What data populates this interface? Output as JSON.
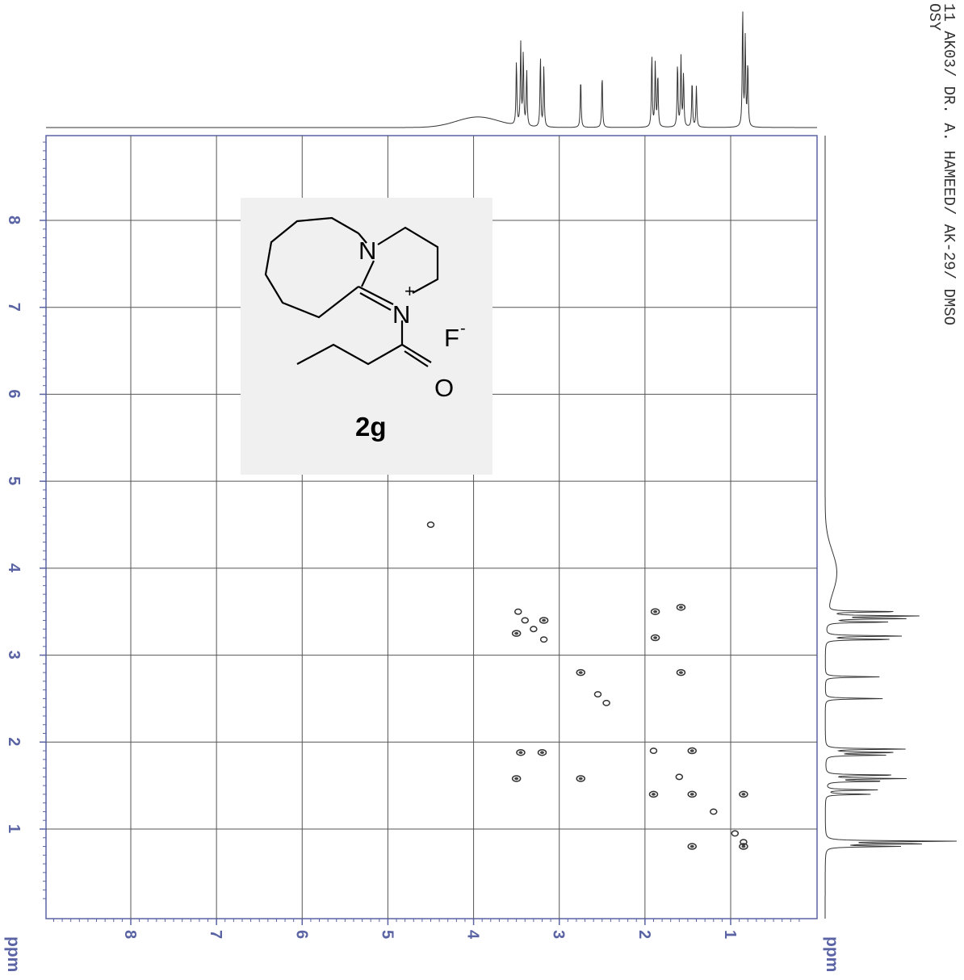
{
  "header": {
    "line1": "11 AK03/ DR. A. HAMEED/ AK-29/ DMSO",
    "line2": "OSY"
  },
  "chart_data": {
    "type": "scatter",
    "subtype": "2D COSY NMR spectrum",
    "xlabel": "ppm",
    "ylabel": "ppm",
    "xlim": [
      9.0,
      0.2
    ],
    "ylim": [
      9.0,
      0.2
    ],
    "x_ticks": [
      "8",
      "7",
      "6",
      "5",
      "4",
      "3",
      "2",
      "1"
    ],
    "y_ticks": [
      "8",
      "7",
      "6",
      "5",
      "4",
      "3",
      "2",
      "1"
    ],
    "grid": true,
    "colors": {
      "axis": "#5a63a3",
      "grid": "#555555",
      "peaks": "#333333"
    },
    "diagonal_peaks": [
      {
        "x": 3.48,
        "y": 3.5
      },
      {
        "x": 3.4,
        "y": 3.4
      },
      {
        "x": 3.3,
        "y": 3.3
      },
      {
        "x": 3.18,
        "y": 3.18
      },
      {
        "x": 2.55,
        "y": 2.55
      },
      {
        "x": 2.45,
        "y": 2.45
      },
      {
        "x": 1.9,
        "y": 1.9
      },
      {
        "x": 1.6,
        "y": 1.6
      },
      {
        "x": 1.2,
        "y": 1.2
      },
      {
        "x": 0.95,
        "y": 0.95
      },
      {
        "x": 0.85,
        "y": 0.85
      },
      {
        "x": 4.5,
        "y": 4.5
      }
    ],
    "cross_peaks": [
      {
        "x": 3.18,
        "y": 3.4
      },
      {
        "x": 3.5,
        "y": 3.25
      },
      {
        "x": 2.75,
        "y": 2.8
      },
      {
        "x": 1.88,
        "y": 3.5
      },
      {
        "x": 1.88,
        "y": 3.2
      },
      {
        "x": 1.58,
        "y": 3.55
      },
      {
        "x": 1.58,
        "y": 2.8
      },
      {
        "x": 3.45,
        "y": 1.88
      },
      {
        "x": 3.2,
        "y": 1.88
      },
      {
        "x": 3.5,
        "y": 1.58
      },
      {
        "x": 2.75,
        "y": 1.58
      },
      {
        "x": 1.45,
        "y": 1.9
      },
      {
        "x": 1.9,
        "y": 1.4
      },
      {
        "x": 1.45,
        "y": 1.4
      },
      {
        "x": 0.85,
        "y": 1.4
      },
      {
        "x": 1.45,
        "y": 0.8
      },
      {
        "x": 0.85,
        "y": 0.8
      }
    ],
    "projection_1d_peaks": [
      {
        "shift": 3.5,
        "height": 0.55
      },
      {
        "shift": 3.45,
        "height": 0.7
      },
      {
        "shift": 3.42,
        "height": 0.62
      },
      {
        "shift": 3.38,
        "height": 0.48
      },
      {
        "shift": 3.22,
        "height": 0.6
      },
      {
        "shift": 3.18,
        "height": 0.52
      },
      {
        "shift": 2.75,
        "height": 0.42
      },
      {
        "shift": 2.5,
        "height": 0.45
      },
      {
        "shift": 1.92,
        "height": 0.62
      },
      {
        "shift": 1.88,
        "height": 0.55
      },
      {
        "shift": 1.85,
        "height": 0.45
      },
      {
        "shift": 1.62,
        "height": 0.55
      },
      {
        "shift": 1.58,
        "height": 0.6
      },
      {
        "shift": 1.55,
        "height": 0.45
      },
      {
        "shift": 1.45,
        "height": 0.4
      },
      {
        "shift": 1.4,
        "height": 0.35
      },
      {
        "shift": 0.86,
        "height": 1.0
      },
      {
        "shift": 0.83,
        "height": 0.75
      },
      {
        "shift": 0.8,
        "height": 0.55
      }
    ],
    "solvent_hump": {
      "center": 3.95,
      "height": 0.09,
      "width": 0.35
    }
  },
  "molecule": {
    "atom_n1": "N",
    "atom_n2": "N",
    "charge": "+",
    "counterion": "F",
    "counterion_charge": "-",
    "atom_o": "O",
    "compound_label": "2g"
  }
}
